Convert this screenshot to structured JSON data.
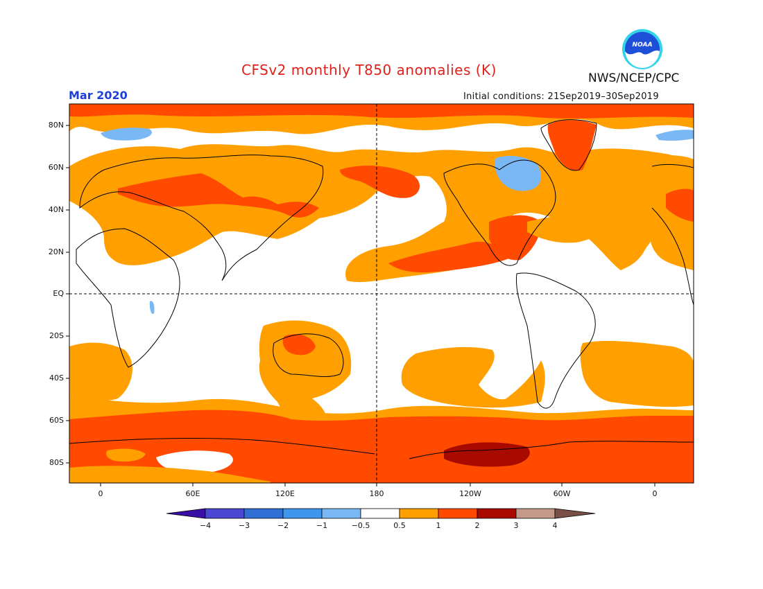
{
  "header": {
    "title": "CFSv2 monthly T850 anomalies (K)",
    "month": "Mar 2020",
    "initial_conditions": "Initial conditions: 21Sep2019–30Sep2019",
    "agency": "NWS/NCEP/CPC",
    "logo_text": "NOAA"
  },
  "map": {
    "lat_labels": [
      "80N",
      "60N",
      "40N",
      "20N",
      "EQ",
      "20S",
      "40S",
      "60S",
      "80S"
    ],
    "lon_labels": [
      "0",
      "60E",
      "120E",
      "180",
      "120W",
      "60W",
      "0"
    ]
  },
  "colorbar": {
    "tick_labels": [
      "−4",
      "−3",
      "−2",
      "−1",
      "−0.5",
      "0.5",
      "1",
      "2",
      "3",
      "4"
    ],
    "colors": [
      "#3a0fa8",
      "#4a47d2",
      "#2f6fd6",
      "#3f96ec",
      "#7ab7f5",
      "#ffffff",
      "#ffa000",
      "#ff4a00",
      "#a80a00",
      "#c39a8a",
      "#7a5046"
    ]
  },
  "colors": {
    "title": "#e0201b",
    "month": "#1c3fd8",
    "anom_05_1": "#ffa000",
    "anom_1_2": "#ff4a00",
    "anom_2_3": "#a80a00",
    "anom_neg_05_1": "#7ab7f5"
  }
}
